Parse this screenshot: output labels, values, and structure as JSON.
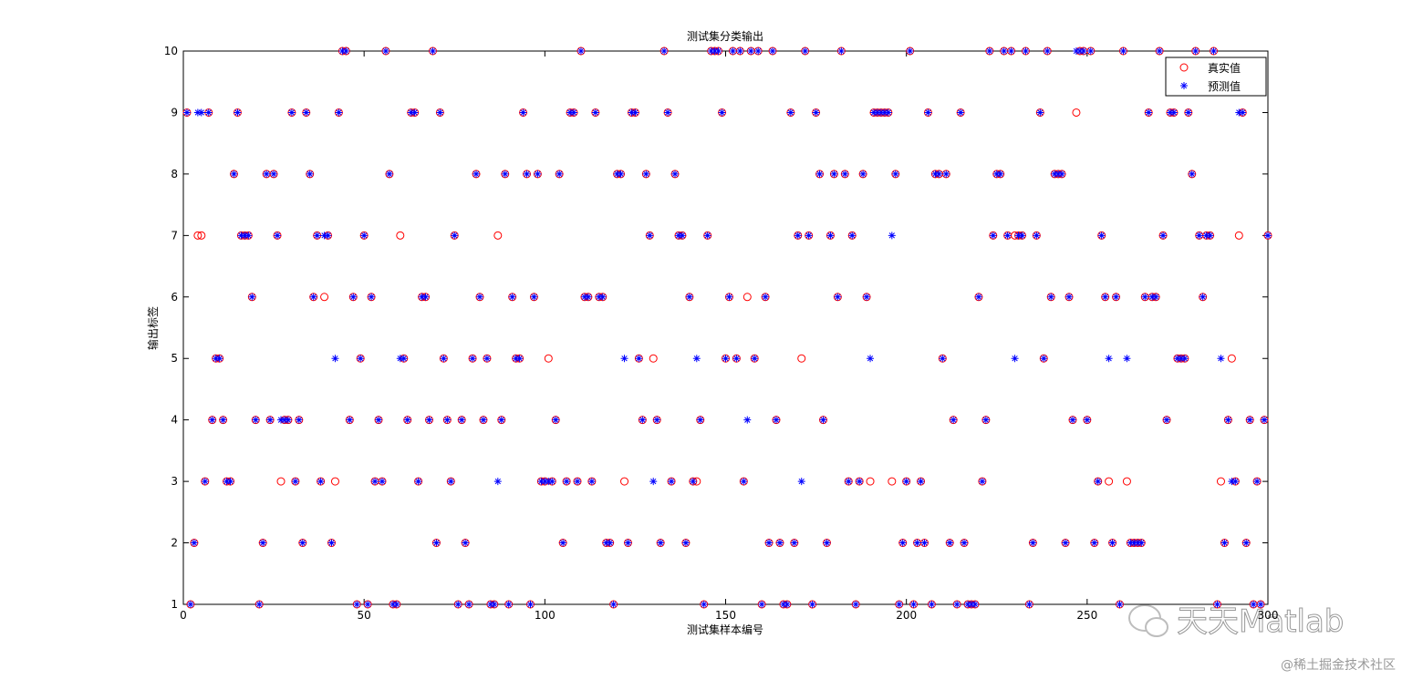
{
  "chart_data": {
    "type": "scatter",
    "title": "测试集分类输出",
    "xlabel": "测试集样本编号",
    "ylabel": "输出标签",
    "x": [
      1,
      2,
      3,
      4,
      5,
      6,
      7,
      8,
      9,
      10,
      11,
      12,
      13,
      14,
      15,
      16,
      17,
      18,
      19,
      20,
      21,
      22,
      23,
      24,
      25,
      26,
      27,
      28,
      29,
      30,
      31,
      32,
      33,
      34,
      35,
      36,
      37,
      38,
      39,
      40,
      41,
      42,
      43,
      44,
      45,
      46,
      47,
      48,
      49,
      50,
      51,
      52,
      53,
      54,
      55,
      56,
      57,
      58,
      59,
      60,
      61,
      62,
      63,
      64,
      65,
      66,
      67,
      68,
      69,
      70,
      71,
      72,
      73,
      74,
      75,
      76,
      77,
      78,
      79,
      80,
      81,
      82,
      83,
      84,
      85,
      86,
      87,
      88,
      89,
      90,
      91,
      92,
      93,
      94,
      95,
      96,
      97,
      98,
      99,
      100,
      101,
      102,
      103,
      104,
      105,
      106,
      107,
      108,
      109,
      110,
      111,
      112,
      113,
      114,
      115,
      116,
      117,
      118,
      119,
      120,
      121,
      122,
      123,
      124,
      125,
      126,
      127,
      128,
      129,
      130,
      131,
      132,
      133,
      134,
      135,
      136,
      137,
      138,
      139,
      140,
      141,
      142,
      143,
      144,
      145,
      146,
      147,
      148,
      149,
      150,
      151,
      152,
      153,
      154,
      155,
      156,
      157,
      158,
      159,
      160,
      161,
      162,
      163,
      164,
      165,
      166,
      167,
      168,
      169,
      170,
      171,
      172,
      173,
      174,
      175,
      176,
      177,
      178,
      179,
      180,
      181,
      182,
      183,
      184,
      185,
      186,
      187,
      188,
      189,
      190,
      191,
      192,
      193,
      194,
      195,
      196,
      197,
      198,
      199,
      200,
      201,
      202,
      203,
      204,
      205,
      206,
      207,
      208,
      209,
      210,
      211,
      212,
      213,
      214,
      215,
      216,
      217,
      218,
      219,
      220,
      221,
      222,
      223,
      224,
      225,
      226,
      227,
      228,
      229,
      230,
      231,
      232,
      233,
      234,
      235,
      236,
      237,
      238,
      239,
      240,
      241,
      242,
      243,
      244,
      245,
      246,
      247,
      248,
      249,
      250,
      251,
      252,
      253,
      254,
      255,
      256,
      257,
      258,
      259,
      260,
      261,
      262,
      263,
      264,
      265,
      266,
      267,
      268,
      269,
      270,
      271,
      272,
      273,
      274,
      275,
      276,
      277,
      278,
      279,
      280,
      281,
      282,
      283,
      284,
      285,
      286,
      287,
      288,
      289,
      290,
      291,
      292,
      293,
      294,
      295,
      296,
      297,
      298,
      299,
      300
    ],
    "series": [
      {
        "name": "真实值",
        "color": "#ff0000",
        "marker": "circle",
        "values": [
          9,
          1,
          2,
          7,
          7,
          3,
          9,
          4,
          5,
          5,
          4,
          3,
          3,
          8,
          9,
          7,
          7,
          7,
          6,
          4,
          1,
          2,
          8,
          4,
          8,
          7,
          3,
          4,
          4,
          9,
          3,
          4,
          2,
          9,
          8,
          6,
          7,
          3,
          6,
          7,
          2,
          3,
          9,
          10,
          10,
          4,
          6,
          1,
          5,
          7,
          1,
          6,
          3,
          4,
          3,
          10,
          8,
          1,
          1,
          7,
          5,
          4,
          9,
          9,
          3,
          6,
          6,
          4,
          10,
          2,
          9,
          5,
          4,
          3,
          7,
          1,
          4,
          2,
          1,
          5,
          8,
          6,
          4,
          5,
          1,
          1,
          7,
          4,
          8,
          1,
          6,
          5,
          5,
          9,
          8,
          1,
          6,
          8,
          3,
          3,
          5,
          3,
          4,
          8,
          2,
          3,
          9,
          9,
          3,
          10,
          6,
          6,
          3,
          9,
          6,
          6,
          2,
          2,
          1,
          8,
          8,
          3,
          2,
          9,
          9,
          5,
          4,
          8,
          7,
          5,
          4,
          2,
          10,
          9,
          3,
          8,
          7,
          7,
          2,
          6,
          3,
          3,
          4,
          1,
          7,
          10,
          10,
          10,
          9,
          5,
          6,
          10,
          5,
          10,
          3,
          6,
          10,
          5,
          10,
          1,
          6,
          2,
          10,
          4,
          2,
          1,
          1,
          9,
          2,
          7,
          5,
          10,
          7,
          1,
          9,
          8,
          4,
          2,
          7,
          8,
          6,
          10,
          8,
          3,
          7,
          1,
          3,
          8,
          6,
          3,
          9,
          9,
          9,
          9,
          9,
          3,
          8,
          1,
          2,
          3,
          10,
          1,
          2,
          3,
          2,
          9,
          1,
          8,
          8,
          5,
          8,
          2,
          4,
          1,
          9,
          2,
          1,
          1,
          1,
          6,
          3,
          4,
          10,
          7,
          8,
          8,
          10,
          7,
          10,
          7,
          7,
          7,
          10,
          1,
          2,
          7,
          9,
          5,
          10,
          6,
          8,
          8,
          8,
          2,
          6,
          4,
          9,
          10,
          10,
          4,
          10,
          2,
          3,
          7,
          6,
          3,
          2,
          6,
          1,
          10,
          3,
          2,
          2,
          2,
          2,
          6,
          9,
          6,
          6,
          10,
          7,
          4,
          9,
          9,
          5,
          5,
          5,
          9,
          8,
          10,
          7,
          6,
          7,
          7,
          10,
          1,
          3,
          2,
          4,
          5,
          3,
          7,
          9,
          2,
          4,
          1,
          3,
          1,
          4,
          7
        ]
      },
      {
        "name": "预测值",
        "color": "#0000ff",
        "marker": "asterisk",
        "values": [
          9,
          1,
          2,
          9,
          9,
          3,
          9,
          4,
          5,
          5,
          4,
          3,
          3,
          8,
          9,
          7,
          7,
          7,
          6,
          4,
          1,
          2,
          8,
          4,
          8,
          7,
          4,
          4,
          4,
          9,
          3,
          4,
          2,
          9,
          8,
          6,
          7,
          3,
          7,
          7,
          2,
          5,
          9,
          10,
          10,
          4,
          6,
          1,
          5,
          7,
          1,
          6,
          3,
          4,
          3,
          10,
          8,
          1,
          1,
          5,
          5,
          4,
          9,
          9,
          3,
          6,
          6,
          4,
          10,
          2,
          9,
          5,
          4,
          3,
          7,
          1,
          4,
          2,
          1,
          5,
          8,
          6,
          4,
          5,
          1,
          1,
          3,
          4,
          8,
          1,
          6,
          5,
          5,
          9,
          8,
          1,
          6,
          8,
          3,
          3,
          3,
          3,
          4,
          8,
          2,
          3,
          9,
          9,
          3,
          10,
          6,
          6,
          3,
          9,
          6,
          6,
          2,
          2,
          1,
          8,
          8,
          5,
          2,
          9,
          9,
          5,
          4,
          8,
          7,
          3,
          4,
          2,
          10,
          9,
          3,
          8,
          7,
          7,
          2,
          6,
          3,
          5,
          4,
          1,
          7,
          10,
          10,
          10,
          9,
          5,
          6,
          10,
          5,
          10,
          3,
          4,
          10,
          5,
          10,
          1,
          6,
          2,
          10,
          4,
          2,
          1,
          1,
          9,
          2,
          7,
          3,
          10,
          7,
          1,
          9,
          8,
          4,
          2,
          7,
          8,
          6,
          10,
          8,
          3,
          7,
          1,
          3,
          8,
          6,
          5,
          9,
          9,
          9,
          9,
          9,
          7,
          8,
          1,
          2,
          3,
          10,
          1,
          2,
          3,
          2,
          9,
          1,
          8,
          8,
          5,
          8,
          2,
          4,
          1,
          9,
          2,
          1,
          1,
          1,
          6,
          3,
          4,
          10,
          7,
          8,
          8,
          10,
          7,
          10,
          5,
          7,
          7,
          10,
          1,
          2,
          7,
          9,
          5,
          10,
          6,
          8,
          8,
          8,
          2,
          6,
          4,
          10,
          10,
          10,
          4,
          10,
          2,
          3,
          7,
          6,
          5,
          2,
          6,
          1,
          10,
          5,
          2,
          2,
          2,
          2,
          6,
          9,
          6,
          6,
          10,
          7,
          4,
          9,
          9,
          5,
          5,
          5,
          9,
          8,
          10,
          7,
          6,
          7,
          7,
          10,
          1,
          5,
          2,
          4,
          3,
          3,
          9,
          9,
          2,
          4,
          1,
          3,
          1,
          4,
          7
        ]
      }
    ],
    "xlim": [
      0,
      300
    ],
    "ylim": [
      1,
      10
    ],
    "xticks": [
      0,
      50,
      100,
      150,
      200,
      250,
      300
    ],
    "yticks": [
      1,
      2,
      3,
      4,
      5,
      6,
      7,
      8,
      9,
      10
    ],
    "legend": "northeast"
  },
  "watermark": {
    "logo_text": "天天Matlab",
    "site": "@稀土掘金技术社区"
  }
}
